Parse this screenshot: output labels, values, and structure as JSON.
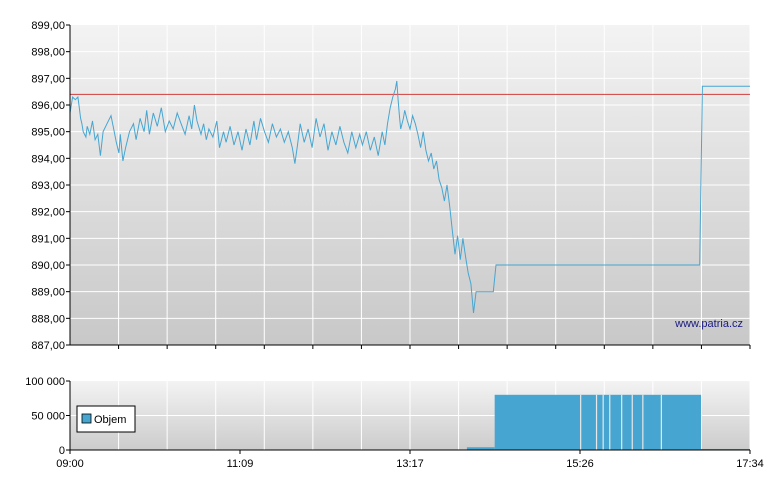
{
  "chart_data": [
    {
      "type": "line",
      "name": "price-panel",
      "ylim": [
        887,
        899
      ],
      "y_ticks": [
        "899,00",
        "898,00",
        "897,00",
        "896,00",
        "895,00",
        "894,00",
        "893,00",
        "892,00",
        "891,00",
        "890,00",
        "889,00",
        "888,00",
        "887,00"
      ],
      "x_range": [
        "09:00",
        "17:34"
      ],
      "reference_line": 896.4,
      "grid": true,
      "watermark": "www.patria.cz",
      "series": [
        {
          "color": "#46a6d1",
          "points": [
            [
              "09:00",
              895.7
            ],
            [
              "09:02",
              896.3
            ],
            [
              "09:04",
              896.2
            ],
            [
              "09:06",
              896.3
            ],
            [
              "09:07",
              895.9
            ],
            [
              "09:08",
              895.5
            ],
            [
              "09:09",
              895.3
            ],
            [
              "09:10",
              895.0
            ],
            [
              "09:12",
              894.8
            ],
            [
              "09:13",
              895.2
            ],
            [
              "09:15",
              894.9
            ],
            [
              "09:17",
              895.4
            ],
            [
              "09:19",
              894.7
            ],
            [
              "09:21",
              894.9
            ],
            [
              "09:23",
              894.1
            ],
            [
              "09:25",
              895.0
            ],
            [
              "09:28",
              895.3
            ],
            [
              "09:31",
              895.6
            ],
            [
              "09:33",
              895.1
            ],
            [
              "09:35",
              894.6
            ],
            [
              "09:37",
              894.2
            ],
            [
              "09:38",
              894.9
            ],
            [
              "09:40",
              893.9
            ],
            [
              "09:42",
              894.4
            ],
            [
              "09:45",
              895.0
            ],
            [
              "09:48",
              895.3
            ],
            [
              "09:50",
              894.7
            ],
            [
              "09:53",
              895.5
            ],
            [
              "09:56",
              895.0
            ],
            [
              "09:58",
              895.8
            ],
            [
              "10:00",
              894.9
            ],
            [
              "10:03",
              895.7
            ],
            [
              "10:06",
              895.2
            ],
            [
              "10:09",
              895.9
            ],
            [
              "10:12",
              895.0
            ],
            [
              "10:15",
              895.4
            ],
            [
              "10:18",
              895.1
            ],
            [
              "10:21",
              895.7
            ],
            [
              "10:24",
              895.3
            ],
            [
              "10:27",
              894.9
            ],
            [
              "10:30",
              895.6
            ],
            [
              "10:32",
              895.1
            ],
            [
              "10:34",
              896.0
            ],
            [
              "10:36",
              895.4
            ],
            [
              "10:39",
              894.9
            ],
            [
              "10:41",
              895.3
            ],
            [
              "10:43",
              894.7
            ],
            [
              "10:45",
              895.1
            ],
            [
              "10:48",
              894.8
            ],
            [
              "10:51",
              895.4
            ],
            [
              "10:53",
              894.4
            ],
            [
              "10:56",
              895.0
            ],
            [
              "10:58",
              894.6
            ],
            [
              "11:01",
              895.2
            ],
            [
              "11:04",
              894.5
            ],
            [
              "11:07",
              895.0
            ],
            [
              "11:10",
              894.3
            ],
            [
              "11:13",
              895.1
            ],
            [
              "11:16",
              894.5
            ],
            [
              "11:19",
              895.4
            ],
            [
              "11:21",
              894.7
            ],
            [
              "11:24",
              895.5
            ],
            [
              "11:27",
              895.0
            ],
            [
              "11:30",
              894.6
            ],
            [
              "11:33",
              895.3
            ],
            [
              "11:36",
              894.8
            ],
            [
              "11:39",
              895.1
            ],
            [
              "11:42",
              894.6
            ],
            [
              "11:45",
              895.0
            ],
            [
              "11:48",
              894.4
            ],
            [
              "11:50",
              893.8
            ],
            [
              "11:52",
              894.5
            ],
            [
              "11:54",
              895.3
            ],
            [
              "11:57",
              894.6
            ],
            [
              "12:00",
              895.1
            ],
            [
              "12:03",
              894.4
            ],
            [
              "12:06",
              895.5
            ],
            [
              "12:09",
              894.8
            ],
            [
              "12:12",
              895.3
            ],
            [
              "12:15",
              894.3
            ],
            [
              "12:18",
              895.0
            ],
            [
              "12:21",
              894.5
            ],
            [
              "12:24",
              895.2
            ],
            [
              "12:27",
              894.6
            ],
            [
              "12:30",
              894.2
            ],
            [
              "12:33",
              895.0
            ],
            [
              "12:36",
              894.4
            ],
            [
              "12:39",
              894.9
            ],
            [
              "12:41",
              894.5
            ],
            [
              "12:44",
              895.0
            ],
            [
              "12:47",
              894.3
            ],
            [
              "12:50",
              894.8
            ],
            [
              "12:53",
              894.1
            ],
            [
              "12:56",
              895.0
            ],
            [
              "12:58",
              894.5
            ],
            [
              "13:00",
              895.3
            ],
            [
              "13:02",
              895.9
            ],
            [
              "13:04",
              896.3
            ],
            [
              "13:06",
              896.6
            ],
            [
              "13:07",
              896.9
            ],
            [
              "13:08",
              896.2
            ],
            [
              "13:09",
              895.6
            ],
            [
              "13:10",
              895.1
            ],
            [
              "13:12",
              895.5
            ],
            [
              "13:13",
              895.8
            ],
            [
              "13:15",
              895.4
            ],
            [
              "13:17",
              895.1
            ],
            [
              "13:19",
              895.6
            ],
            [
              "13:21",
              895.3
            ],
            [
              "13:23",
              894.9
            ],
            [
              "13:25",
              894.4
            ],
            [
              "13:27",
              895.0
            ],
            [
              "13:29",
              894.3
            ],
            [
              "13:31",
              893.9
            ],
            [
              "13:33",
              894.2
            ],
            [
              "13:35",
              893.6
            ],
            [
              "13:37",
              893.9
            ],
            [
              "13:39",
              893.2
            ],
            [
              "13:41",
              892.9
            ],
            [
              "13:43",
              892.4
            ],
            [
              "13:45",
              893.0
            ],
            [
              "13:47",
              892.2
            ],
            [
              "13:49",
              891.3
            ],
            [
              "13:51",
              890.4
            ],
            [
              "13:53",
              891.1
            ],
            [
              "13:55",
              890.2
            ],
            [
              "13:57",
              891.0
            ],
            [
              "13:59",
              890.3
            ],
            [
              "14:01",
              889.7
            ],
            [
              "14:03",
              889.3
            ],
            [
              "14:05",
              888.2
            ],
            [
              "14:07",
              889.0
            ],
            [
              "14:20",
              889.0
            ],
            [
              "14:22",
              890.0
            ],
            [
              "16:56",
              890.0
            ],
            [
              "16:58",
              896.7
            ],
            [
              "17:34",
              896.7
            ]
          ]
        }
      ]
    },
    {
      "type": "bar",
      "name": "volume-panel",
      "ylim": [
        0,
        100000
      ],
      "y_ticks": [
        "100 000",
        "50 000",
        "0"
      ],
      "x_ticks": [
        "09:00",
        "11:09",
        "13:17",
        "15:26",
        "17:34"
      ],
      "grid": true,
      "series": [
        {
          "name": "Objem",
          "color": "#46a6d1",
          "bars": [
            {
              "from": "14:00",
              "to": "14:21",
              "value": 4000
            },
            {
              "from": "14:21",
              "to": "16:57",
              "value": 80000
            },
            {
              "from": "16:57",
              "to": "17:34",
              "value": 1500
            }
          ],
          "gaps": [
            "15:26",
            "15:38",
            "15:43",
            "15:48",
            "15:57",
            "16:05",
            "16:13",
            "16:27"
          ]
        }
      ]
    }
  ]
}
